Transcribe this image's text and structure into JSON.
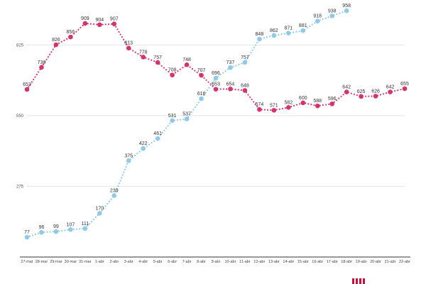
{
  "chart_data": {
    "type": "line",
    "categories": [
      "27-mar",
      "28-mar",
      "29-mar",
      "30-mar",
      "31-mar",
      "1-abr",
      "2-abr",
      "3-abr",
      "4-abr",
      "5-abr",
      "6-abr",
      "7-abr",
      "8-abr",
      "9-abr",
      "10-abr",
      "11-abr",
      "12-abr",
      "13-abr",
      "14-abr",
      "15-abr",
      "16-abr",
      "17-abr",
      "18-abr",
      "19-abr",
      "20-abr",
      "21-abr",
      "22-abr"
    ],
    "series": [
      {
        "color": "#d6336c",
        "values": [
          652,
          738,
          826,
          856,
          909,
          904,
          907,
          813,
          778,
          757,
          708,
          748,
          707,
          653,
          654,
          648,
          574,
          571,
          582,
          600,
          588,
          596,
          642,
          625,
          626,
          642,
          655
        ]
      },
      {
        "color": "#8fcbe8",
        "values": [
          77,
          96,
          99,
          107,
          111,
          170,
          239,
          375,
          422,
          461,
          531,
          537,
          616,
          696,
          737,
          757,
          848,
          862,
          871,
          881,
          918,
          938,
          958,
          null,
          null,
          null,
          null
        ]
      }
    ],
    "yticks": [
      275,
      550,
      825
    ],
    "ylim": [
      0,
      1000
    ],
    "title": "",
    "xlabel": "",
    "ylabel": "",
    "grid": true
  }
}
